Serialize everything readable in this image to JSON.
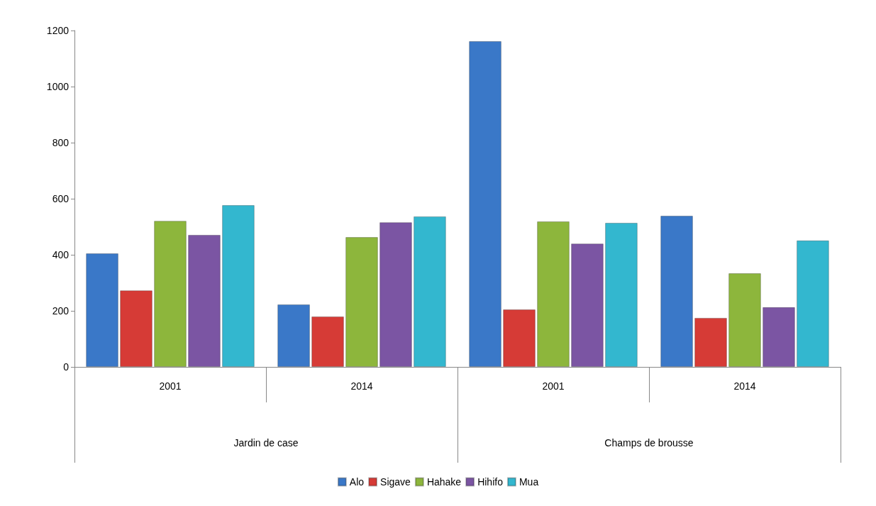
{
  "chart_data": {
    "type": "bar",
    "categories": [
      "2001",
      "2014",
      "2001",
      "2014"
    ],
    "annotations": [
      "Jardin de case",
      "Champs de brousse"
    ],
    "series": [
      {
        "name": "Alo",
        "color": "#3a78c8",
        "values": [
          405,
          223,
          1162,
          539
        ]
      },
      {
        "name": "Sigave",
        "color": "#d63b36",
        "values": [
          273,
          180,
          205,
          175
        ]
      },
      {
        "name": "Hahake",
        "color": "#8db63c",
        "values": [
          521,
          463,
          519,
          334
        ]
      },
      {
        "name": "Hihifo",
        "color": "#7b55a3",
        "values": [
          471,
          516,
          440,
          213
        ]
      },
      {
        "name": "Mua",
        "color": "#33b7cf",
        "values": [
          577,
          537,
          514,
          451
        ]
      }
    ],
    "ylim": [
      0,
      1200
    ],
    "yticks": [
      0,
      200,
      400,
      600,
      800,
      1000,
      1200
    ],
    "grid": false,
    "legend": "bottom"
  }
}
